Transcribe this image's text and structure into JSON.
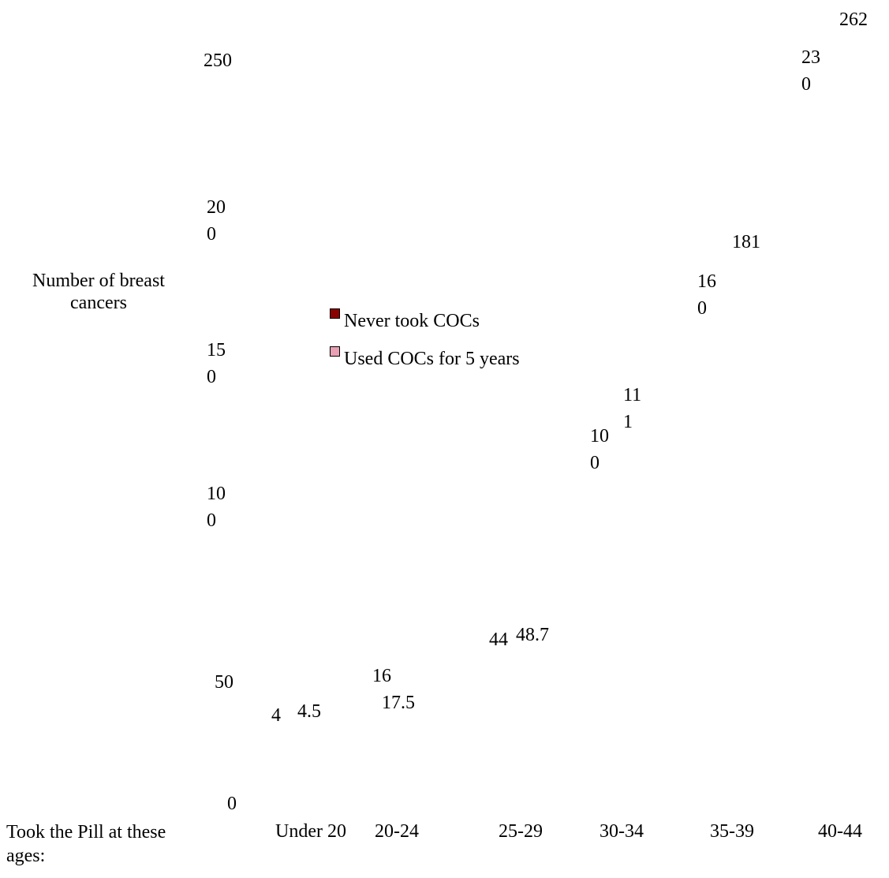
{
  "chart_data": {
    "type": "bar",
    "title": "",
    "xlabel": "Took the Pill at these ages:",
    "ylabel": "Number of breast cancers",
    "ylim": [
      0,
      262
    ],
    "yticks": [
      {
        "lines": [
          "0"
        ]
      },
      {
        "lines": [
          "50"
        ]
      },
      {
        "lines": [
          "10",
          "0"
        ]
      },
      {
        "lines": [
          "15",
          "0"
        ]
      },
      {
        "lines": [
          "20",
          "0"
        ]
      },
      {
        "lines": [
          "250"
        ]
      }
    ],
    "categories": [
      "Under 20",
      "20-24",
      "25-29",
      "30-34",
      "35-39",
      "40-44"
    ],
    "series": [
      {
        "name": "Never took COCs",
        "color": "#8B0000",
        "values": [
          4,
          16,
          44,
          100,
          160,
          230
        ],
        "labels": [
          [
            "4"
          ],
          [
            "16"
          ],
          [
            "44"
          ],
          [
            "10",
            "0"
          ],
          [
            "16",
            "0"
          ],
          [
            "23",
            "0"
          ]
        ]
      },
      {
        "name": "Used COCs for 5 years",
        "color": "#E8A0B4",
        "values": [
          4.5,
          17.5,
          48.7,
          111,
          181,
          262
        ],
        "labels": [
          [
            "4.5"
          ],
          [
            "17.5"
          ],
          [
            "48.7"
          ],
          [
            "11",
            "1"
          ],
          [
            "181"
          ],
          [
            "262"
          ]
        ]
      }
    ],
    "legend": "center-left",
    "grid": false
  }
}
